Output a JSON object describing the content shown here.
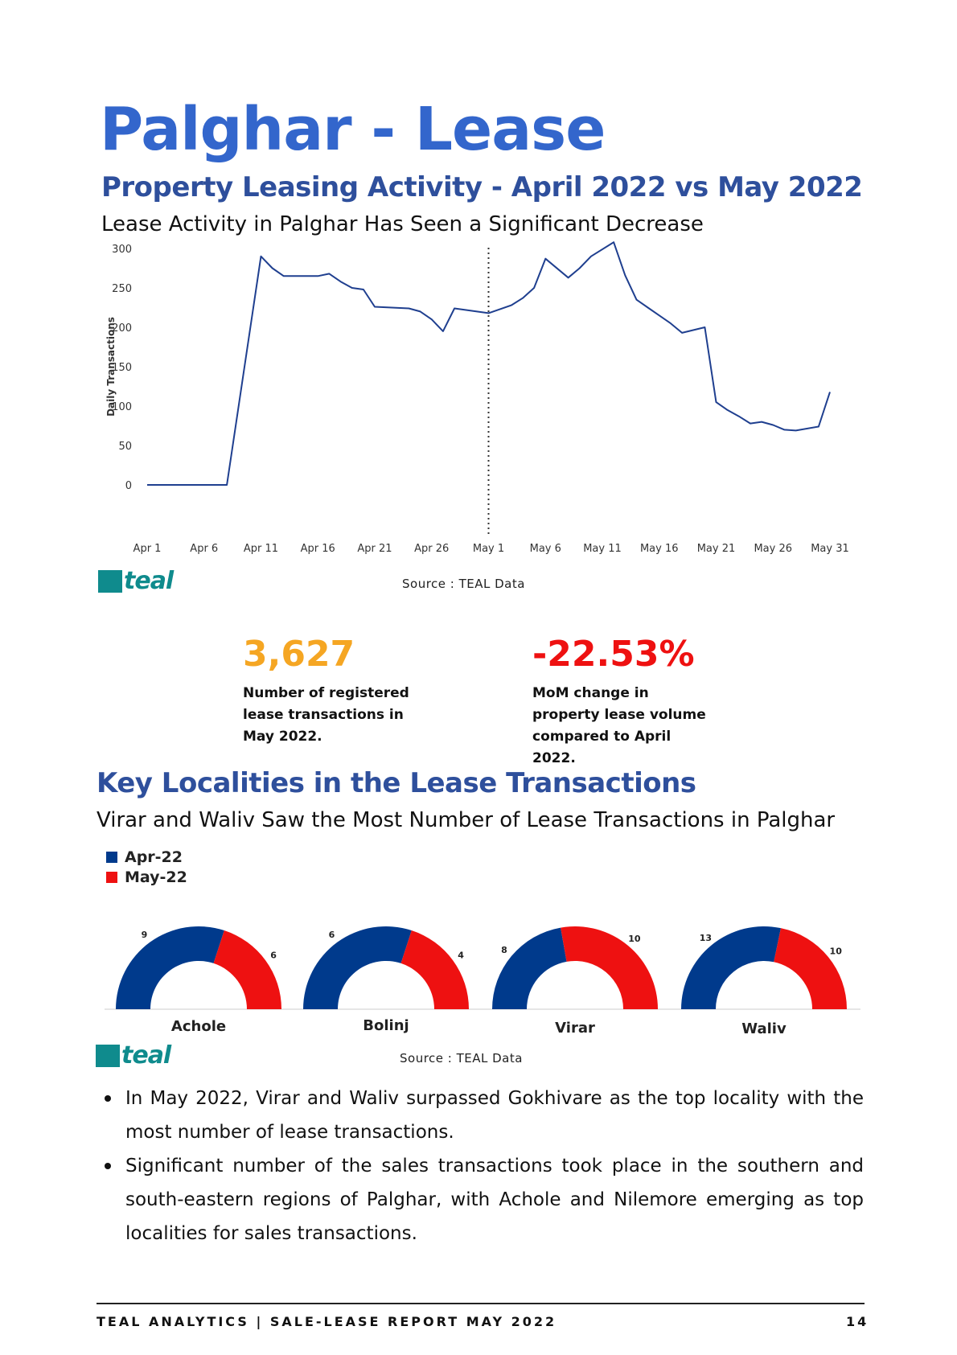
{
  "header": {
    "title": "Palghar - Lease",
    "subtitle": "Property Leasing Activity - April 2022 vs May 2022",
    "lead": "Lease Activity in Palghar Has Seen a Significant Decrease"
  },
  "chart_data": [
    {
      "type": "line",
      "title": "",
      "xlabel": "",
      "ylabel": "Daily Transactions",
      "ylim": [
        0,
        300
      ],
      "y_ticks": [
        "0",
        "50",
        "100",
        "150",
        "200",
        "250",
        "300"
      ],
      "x_ticks": [
        "Apr 1",
        "Apr 6",
        "Apr 11",
        "Apr 16",
        "Apr 21",
        "Apr 26",
        "May 1",
        "May 6",
        "May 11",
        "May 16",
        "May 21",
        "May 26",
        "May 31"
      ],
      "divider_at": "May 1",
      "grid": false,
      "color": "#1f3f8f",
      "series": [
        {
          "x": [
            "Apr 1",
            "Apr 8",
            "Apr 11",
            "Apr 12",
            "Apr 13",
            "Apr 16",
            "Apr 17",
            "Apr 18",
            "Apr 19",
            "Apr 20",
            "Apr 21",
            "Apr 24",
            "Apr 25",
            "Apr 26",
            "Apr 27",
            "Apr 28",
            "May 1",
            "May 3",
            "May 4",
            "May 5",
            "May 6",
            "May 8",
            "May 9",
            "May 10",
            "May 12",
            "May 13",
            "May 14",
            "May 15",
            "May 16",
            "May 17",
            "May 18",
            "May 20",
            "May 21",
            "May 22",
            "May 23",
            "May 24",
            "May 25",
            "May 26",
            "May 27",
            "May 28",
            "May 30",
            "May 31"
          ],
          "values": [
            0,
            0,
            290,
            275,
            265,
            265,
            268,
            258,
            250,
            248,
            226,
            224,
            220,
            210,
            195,
            224,
            218,
            228,
            237,
            250,
            287,
            263,
            275,
            290,
            308,
            266,
            235,
            225,
            215,
            205,
            193,
            200,
            105,
            95,
            87,
            78,
            80,
            76,
            70,
            69,
            74,
            118
          ]
        }
      ]
    },
    {
      "type": "pie",
      "title": "",
      "legend": [
        "Apr-22",
        "May-22"
      ],
      "legend_position": "top-left",
      "colors": [
        "#003a8c",
        "#ee1111"
      ],
      "charts": [
        {
          "label": "Achole",
          "values": [
            9,
            6
          ]
        },
        {
          "label": "Bolinj",
          "values": [
            6,
            4
          ]
        },
        {
          "label": "Virar",
          "values": [
            8,
            10
          ]
        },
        {
          "label": "Waliv",
          "values": [
            13,
            10
          ]
        }
      ]
    }
  ],
  "source_1": "Source : TEAL Data",
  "source_2": "Source : TEAL Data",
  "logo_text": "teal",
  "kpis": [
    {
      "value": "3,627",
      "desc": "Number of registered lease transactions in May 2022.",
      "color": "#f5a623"
    },
    {
      "value": "-22.53%",
      "desc": "MoM change in property lease volume compared to April 2022.",
      "color": "#ee1111"
    }
  ],
  "section": {
    "title": "Key Localities in the Lease Transactions",
    "lead": "Virar and Waliv Saw the Most Number of Lease Transactions in Palghar"
  },
  "bullets": [
    "In May 2022, Virar and Waliv surpassed Gokhivare as the top locality with the  most number of lease transactions.",
    "Significant number of the sales transactions took place in the southern and south-eastern regions of Palghar, with Achole and Nilemore emerging as top localities for sales transactions."
  ],
  "footer": {
    "left": "TEAL ANALYTICS | SALE-LEASE REPORT MAY 2022",
    "page": "14"
  }
}
